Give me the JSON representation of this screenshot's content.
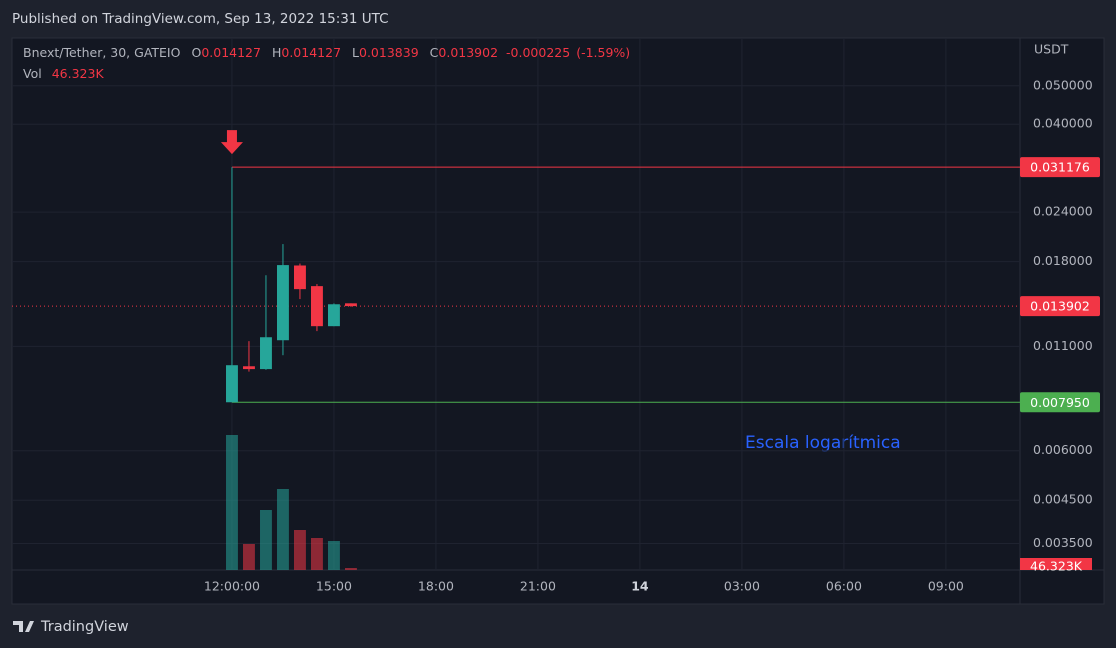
{
  "publisher": "Published on TradingView.com, Sep 13, 2022 15:31 UTC",
  "brand": "TradingView",
  "chart_data": {
    "type": "candlestick",
    "title": "Bnext/Tether, 30, GATEIO",
    "legend": [
      {
        "key": "O",
        "value": "0.014127"
      },
      {
        "key": "H",
        "value": "0.014127"
      },
      {
        "key": "L",
        "value": "0.013839"
      },
      {
        "key": "C",
        "value": "0.013902"
      }
    ],
    "change": "-0.000225",
    "change_pct": "(-1.59%)",
    "volume_name": "Vol",
    "last_volume_label": "46.323K",
    "y_unit": "USDT",
    "annotation": "Escala logarítmica",
    "log_scale": true,
    "grid": true,
    "up_color": "#26a69a",
    "down_color": "#f23645",
    "x": [
      12,
      12.5,
      13,
      13.5,
      14,
      14.5,
      15,
      15.5
    ],
    "open": [
      0.00795,
      0.0098,
      0.00964,
      0.0114,
      0.0176,
      0.01561,
      0.01237,
      0.014127
    ],
    "high": [
      0.031176,
      0.01134,
      0.01663,
      0.01993,
      0.0178,
      0.0158,
      0.01412,
      0.014127
    ],
    "low": [
      0.00795,
      0.0095,
      0.0096,
      0.01045,
      0.01448,
      0.01202,
      0.01237,
      0.013839
    ],
    "close": [
      0.00986,
      0.00964,
      0.0116,
      0.01764,
      0.01534,
      0.01237,
      0.01405,
      0.013902
    ],
    "volume": [
      3125000,
      602000,
      1389000,
      1875000,
      926000,
      741000,
      671000,
      46323
    ],
    "vlim": [
      0,
      5000000
    ],
    "xlim": [
      5.53,
      35.18
    ],
    "xticks": [
      {
        "value": 12,
        "label": "12:00:00"
      },
      {
        "value": 15,
        "label": "15:00"
      },
      {
        "value": 18,
        "label": "18:00"
      },
      {
        "value": 21,
        "label": "21:00"
      },
      {
        "value": 24,
        "label": "14"
      },
      {
        "value": 27,
        "label": "03:00"
      },
      {
        "value": 30,
        "label": "06:00"
      },
      {
        "value": 33,
        "label": "09:00"
      }
    ],
    "ylim": [
      0.003,
      0.066
    ],
    "yticks": [
      {
        "value": 0.05,
        "label": "0.050000"
      },
      {
        "value": 0.04,
        "label": "0.040000"
      },
      {
        "value": 0.024,
        "label": "0.024000"
      },
      {
        "value": 0.018,
        "label": "0.018000"
      },
      {
        "value": 0.011,
        "label": "0.011000"
      },
      {
        "value": 0.006,
        "label": "0.006000"
      },
      {
        "value": 0.0045,
        "label": "0.004500"
      },
      {
        "value": 0.0035,
        "label": "0.003500"
      }
    ],
    "levels": [
      {
        "value": 0.031176,
        "color": "#f23645"
      },
      {
        "value": 0.00795,
        "label": "0.007950",
        "color": "#4caf50"
      }
    ],
    "last_price": {
      "value": 0.013902,
      "color": "#f23645"
    }
  }
}
